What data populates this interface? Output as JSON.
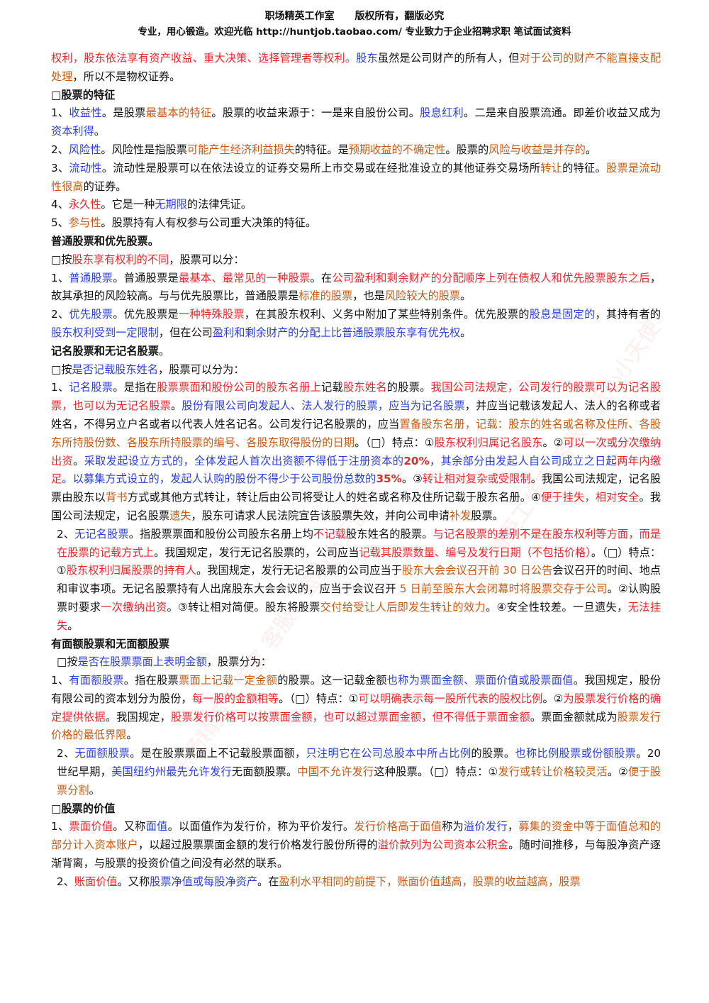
{
  "header": {
    "studio": "职场精英工作室",
    "copyright": "版权所有，翻版必究",
    "tagline": "专业，用心锻造。欢迎光临 http://huntjob.taobao.com/   专业致力于企业招聘求职 笔试面试资料"
  },
  "watermark": "职场精英工作室 客服：蓝小小天使",
  "paragraphs": [
    {
      "k": "p",
      "s": [
        [
          "r",
          "权利，股东依法享有资产收益、重大决策、选择管理者等权利。"
        ],
        [
          "b",
          "股东"
        ],
        [
          "k",
          "虽然是公司财产的所有人，但"
        ],
        [
          "o",
          "对于公司的财产不能直接支配处理"
        ],
        [
          "k",
          "，所以不是物权证券。"
        ]
      ]
    },
    {
      "k": "h",
      "s": [
        [
          "k",
          "□股票的特征"
        ]
      ]
    },
    {
      "k": "p",
      "s": [
        [
          "k",
          "1、"
        ],
        [
          "b",
          "收益性"
        ],
        [
          "k",
          "。是股票"
        ],
        [
          "o",
          "最基本的特征"
        ],
        [
          "k",
          "。股票的收益来源于：一是来自股份公司。"
        ],
        [
          "b",
          "股息红利"
        ],
        [
          "k",
          "。二是来自股票流通。即差价收益又成为"
        ],
        [
          "b",
          "资本利得"
        ],
        [
          "k",
          "。"
        ]
      ]
    },
    {
      "k": "p",
      "s": [
        [
          "k",
          "2、"
        ],
        [
          "b",
          "风险性"
        ],
        [
          "k",
          "。风险性是指股票"
        ],
        [
          "o",
          "可能产生经济利益损失"
        ],
        [
          "k",
          "的特征。是"
        ],
        [
          "o",
          "预期收益的不确定性"
        ],
        [
          "k",
          "。股票的"
        ],
        [
          "o",
          "风险与收益是并存的"
        ],
        [
          "k",
          "。"
        ]
      ]
    },
    {
      "k": "p",
      "s": [
        [
          "k",
          "3、"
        ],
        [
          "b",
          "流动性"
        ],
        [
          "k",
          "。流动性是股票可以在依法设立的证券交易所上市交易或在经批准设立的其他证券交易场所"
        ],
        [
          "o",
          "转让"
        ],
        [
          "k",
          "的特征。"
        ],
        [
          "o",
          "股票是流动性很高"
        ],
        [
          "k",
          "的证券。"
        ]
      ]
    },
    {
      "k": "p",
      "s": [
        [
          "k",
          "4、"
        ],
        [
          "r",
          "永久性"
        ],
        [
          "k",
          "。它是一种"
        ],
        [
          "b",
          "无期限"
        ],
        [
          "k",
          "的法律凭证。"
        ]
      ]
    },
    {
      "k": "p",
      "s": [
        [
          "k",
          "5、"
        ],
        [
          "o",
          "参与性"
        ],
        [
          "k",
          "。股票持有人有权参与公司重大决策的特征。"
        ]
      ]
    },
    {
      "k": "h",
      "s": [
        [
          "k",
          "普通股票和优先股票。"
        ]
      ]
    },
    {
      "k": "p",
      "s": [
        [
          "k",
          "□按"
        ],
        [
          "r",
          "股东享有权利的不同"
        ],
        [
          "k",
          "，股票可以分："
        ]
      ]
    },
    {
      "k": "p",
      "s": [
        [
          "k",
          "1、"
        ],
        [
          "b",
          "普通股票"
        ],
        [
          "k",
          "。普通股票是"
        ],
        [
          "r",
          "最基本、最常见的一种股票"
        ],
        [
          "k",
          "。在"
        ],
        [
          "r",
          "公司盈利和剩余财产的分配顺序上列在债权人和优先股票股东之后"
        ],
        [
          "k",
          "，故其承担的风险较高。与与优先股票比，普通股票是"
        ],
        [
          "o",
          "标准的股票"
        ],
        [
          "k",
          "，也是"
        ],
        [
          "o",
          "风险较大的股票"
        ],
        [
          "k",
          "。"
        ]
      ]
    },
    {
      "k": "p",
      "s": [
        [
          "k",
          "2、"
        ],
        [
          "b",
          "优先股票"
        ],
        [
          "k",
          "。优先股票是"
        ],
        [
          "r",
          "一种特殊股票"
        ],
        [
          "k",
          "，在其股东权利、义务中附加了某些特别条件。优先股票的"
        ],
        [
          "b",
          "股息是固定的"
        ],
        [
          "k",
          "，其持有者的"
        ],
        [
          "b",
          "股东权利受到一定限制"
        ],
        [
          "k",
          "，但在公司"
        ],
        [
          "b",
          "盈利和剩余财产的分配上比普通股票股东享有优先权"
        ],
        [
          "k",
          "。"
        ]
      ]
    },
    {
      "k": "h",
      "s": [
        [
          "k",
          "记名股票和无记名股票"
        ],
        [
          "n",
          "。"
        ]
      ]
    },
    {
      "k": "p",
      "s": [
        [
          "k",
          "□按"
        ],
        [
          "b",
          "是否记载股东姓名"
        ],
        [
          "k",
          "，股票可以分为："
        ]
      ]
    },
    {
      "k": "p",
      "s": [
        [
          "k",
          "1、"
        ],
        [
          "b",
          "记名股票"
        ],
        [
          "k",
          "。是指在"
        ],
        [
          "r",
          "股票票面和股份公司的股东名册上"
        ],
        [
          "k",
          "记载"
        ],
        [
          "r",
          "股东姓名"
        ],
        [
          "k",
          "的股票。"
        ],
        [
          "r",
          "我国公司法规定，公司发行的股票可以为记名股票，也可以为无记名股票"
        ],
        [
          "k",
          "。"
        ],
        [
          "b",
          "股份有限公司向发起人、法人发行的股票，应当为记名股票"
        ],
        [
          "k",
          "，并应当记载该发起人、法人的名称或者姓名，不得另立户名或者以代表人姓名记名。公司发行记名股票的，应当"
        ],
        [
          "o",
          "置备股东名册，记载：股东的姓名或名称及住所、各股东所持股份数、各股东所持股票的编号、各股东取得股份的日期"
        ],
        [
          "k",
          "。（□）特点：①"
        ],
        [
          "r",
          "股东权利归属记名股东"
        ],
        [
          "k",
          "。②"
        ],
        [
          "r",
          "可以一次或分次缴纳出资"
        ],
        [
          "k",
          "。"
        ],
        [
          "b",
          "采取发起设立方式的，全体发起人首次出资额不得低于注册资本的"
        ],
        [
          "rb",
          "20%"
        ],
        [
          "b",
          "，其余部分由发起人自公司成立之日起"
        ],
        [
          "r",
          "两年内缴足"
        ],
        [
          "b",
          "。以募集方式设立的，发起人认购的股份不得少于公司股份总数的"
        ],
        [
          "rb",
          "35%"
        ],
        [
          "k",
          "。③"
        ],
        [
          "r",
          "转让相对复杂或受限制"
        ],
        [
          "k",
          "。我国公司法规定，记名股票由股东以"
        ],
        [
          "o",
          "背书"
        ],
        [
          "k",
          "方式或其他方式转让，转让后由公司将受让人的姓名或名称及住所记载于股东名册。④"
        ],
        [
          "r",
          "便于挂失，相对安全"
        ],
        [
          "k",
          "。我国公司法规定，记名股票"
        ],
        [
          "o",
          "遗失"
        ],
        [
          "k",
          "，股东可请求人民法院宣告该股票失效，并向公司申请"
        ],
        [
          "o",
          "补发"
        ],
        [
          "k",
          "股票。"
        ]
      ]
    },
    {
      "k": "pi",
      "s": [
        [
          "k",
          "2、"
        ],
        [
          "b",
          "无记名股票"
        ],
        [
          "k",
          "。指股票票面和股份公司股东名册上均"
        ],
        [
          "r",
          "不记载"
        ],
        [
          "k",
          "股东姓名的股票。"
        ],
        [
          "r",
          "与记名股票的差别不是在股东权利等方面，而是在股票的记载方式上"
        ],
        [
          "k",
          "。我国规定，发行无记名股票的，公司应当"
        ],
        [
          "r",
          "记载其股票数量、编号及发行日期（不包括价格）"
        ],
        [
          "k",
          "。（□）特点：①"
        ],
        [
          "r",
          "股东权利归属股票的持有人"
        ],
        [
          "k",
          "。我国规定，发行无记名股票的公司应当于"
        ],
        [
          "o",
          "股东大会会议召开前 30 日公告"
        ],
        [
          "k",
          "会议召开的时间、地点和审议事项。无记名股票持有人出席股东大会会议的，应当于会议召开 "
        ],
        [
          "o",
          "5 日前至股东大会闭幕时将股票交存于公司"
        ],
        [
          "k",
          "。②认购股票时要求"
        ],
        [
          "r",
          "一次缴纳出资"
        ],
        [
          "k",
          "。③转让相对简便。股东将股票"
        ],
        [
          "o",
          "交付给受让人后即发生转让的效力"
        ],
        [
          "k",
          "。④安全性较差。一旦遗失，"
        ],
        [
          "r",
          "无法挂失"
        ],
        [
          "k",
          "。"
        ]
      ]
    },
    {
      "k": "h",
      "s": [
        [
          "k",
          "有面额股票和无面额股票"
        ]
      ]
    },
    {
      "k": "pi",
      "s": [
        [
          "k",
          "□按"
        ],
        [
          "b",
          "是否在股票票面上表明金额"
        ],
        [
          "k",
          "，股票分为："
        ]
      ]
    },
    {
      "k": "p",
      "s": [
        [
          "k",
          "1、"
        ],
        [
          "b",
          "有面额股票"
        ],
        [
          "k",
          "。指在股票"
        ],
        [
          "o",
          "票面上记载一定金额"
        ],
        [
          "k",
          "的股票。这一记载金额"
        ],
        [
          "b",
          "也称为票面金额、票面价值或股票面值"
        ],
        [
          "k",
          "。我国规定，股份有限公司的资本划分为股份，"
        ],
        [
          "r",
          "每一股的金额相等"
        ],
        [
          "k",
          "。（□）特点：①"
        ],
        [
          "r",
          "可以明确表示每一股所代表的股权比例"
        ],
        [
          "k",
          "。②"
        ],
        [
          "r",
          "为股票发行价格的确定提供依据"
        ],
        [
          "k",
          "。我国规定，"
        ],
        [
          "r",
          "股票发行价格可以按票面金额，也可以超过票面金额，但不得低于票面金额"
        ],
        [
          "k",
          "。票面金额就成为"
        ],
        [
          "o",
          "股票发行价格的最低界限"
        ],
        [
          "k",
          "。"
        ]
      ]
    },
    {
      "k": "pi",
      "s": [
        [
          "k",
          "2、"
        ],
        [
          "b",
          "无面额股票"
        ],
        [
          "k",
          "。是在股票票面上不记载股票面额，"
        ],
        [
          "b",
          "只注明它在公司总股本中所占比例"
        ],
        [
          "k",
          "的股票。"
        ],
        [
          "b",
          "也称比例股票或份额股票"
        ],
        [
          "k",
          "。20 世纪早期，"
        ],
        [
          "b",
          "美国纽约州最先允许发行"
        ],
        [
          "k",
          "无面额股票。"
        ],
        [
          "o",
          "中国不允许发行"
        ],
        [
          "k",
          "这种股票。（□）特点：①"
        ],
        [
          "o",
          "发行或转让价格较灵活"
        ],
        [
          "k",
          "。②"
        ],
        [
          "o",
          "便于股票分割"
        ],
        [
          "k",
          "。"
        ]
      ]
    },
    {
      "k": "h",
      "s": [
        [
          "k",
          "□股票的价值"
        ]
      ]
    },
    {
      "k": "p",
      "s": [
        [
          "k",
          "1、"
        ],
        [
          "r",
          "票面价值"
        ],
        [
          "k",
          "。又称"
        ],
        [
          "b",
          "面值"
        ],
        [
          "k",
          "。以面值作为发行价，称为平价发行。"
        ],
        [
          "o",
          "发行价格高于面值"
        ],
        [
          "k",
          "称为"
        ],
        [
          "b",
          "溢价发行"
        ],
        [
          "k",
          "，"
        ],
        [
          "o",
          "募集的资金中等于面值总和的部分计入资本账户"
        ],
        [
          "k",
          "，以超过股票票面金额的发行价格发行股份所得的"
        ],
        [
          "r",
          "溢价款列为公司资本公积金"
        ],
        [
          "k",
          "。随时间推移，与每股净资产逐渐背离，与股票的投资价值之间没有必然的联系。"
        ]
      ]
    },
    {
      "k": "pi",
      "s": [
        [
          "k",
          "2、"
        ],
        [
          "r",
          "账面价值"
        ],
        [
          "k",
          "。又称"
        ],
        [
          "b",
          "股票净值或每股净资产"
        ],
        [
          "k",
          "。在"
        ],
        [
          "o",
          "盈利水平相同的前提下，账面价值越高，股票的收益越高，股票"
        ]
      ]
    }
  ]
}
